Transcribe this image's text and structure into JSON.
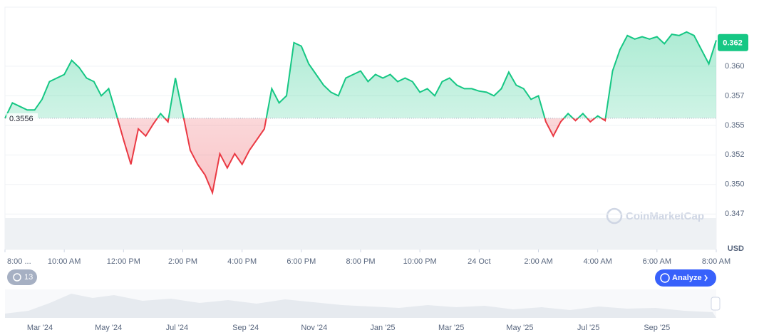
{
  "chart_data": {
    "type": "line",
    "x": [
      0,
      0.25,
      0.5,
      0.75,
      1,
      1.25,
      1.5,
      1.75,
      2,
      2.25,
      2.5,
      2.75,
      3,
      3.25,
      3.5,
      3.75,
      4,
      4.25,
      4.5,
      4.75,
      5,
      5.25,
      5.5,
      5.75,
      6,
      6.25,
      6.5,
      6.75,
      7,
      7.25,
      7.5,
      7.75,
      8,
      8.25,
      8.5,
      8.75,
      9,
      9.25,
      9.5,
      9.75,
      10,
      10.25,
      10.5,
      10.75,
      11,
      11.25,
      11.5,
      11.75,
      12,
      12.25,
      12.5,
      12.75,
      13,
      13.25,
      13.5,
      13.75,
      14,
      14.25,
      14.5,
      14.75,
      15,
      15.25,
      15.5,
      15.75,
      16,
      16.25,
      16.5,
      16.75,
      17,
      17.25,
      17.5,
      17.75,
      18,
      18.25,
      18.5,
      18.75,
      19,
      19.25,
      19.5,
      19.75,
      20,
      20.25,
      20.5,
      20.75,
      21,
      21.25,
      21.5,
      21.75,
      22,
      22.25,
      22.5,
      22.75,
      23,
      23.25,
      23.5,
      23.75,
      24
    ],
    "values": [
      0.3556,
      0.3569,
      0.3566,
      0.3563,
      0.3563,
      0.3572,
      0.3587,
      0.359,
      0.3593,
      0.3605,
      0.3599,
      0.359,
      0.3587,
      0.3575,
      0.3581,
      0.356,
      0.3538,
      0.3517,
      0.3547,
      0.3541,
      0.3551,
      0.356,
      0.3553,
      0.359,
      0.356,
      0.3529,
      0.3517,
      0.3508,
      0.3493,
      0.3526,
      0.3514,
      0.3526,
      0.3517,
      0.3529,
      0.3538,
      0.3547,
      0.3581,
      0.3569,
      0.3575,
      0.362,
      0.3617,
      0.3602,
      0.3593,
      0.3584,
      0.3578,
      0.3575,
      0.359,
      0.3593,
      0.3596,
      0.3587,
      0.3593,
      0.359,
      0.3593,
      0.3587,
      0.359,
      0.3587,
      0.3578,
      0.3581,
      0.3575,
      0.3587,
      0.359,
      0.3584,
      0.3581,
      0.3581,
      0.3579,
      0.3578,
      0.3575,
      0.3581,
      0.3595,
      0.3584,
      0.3581,
      0.3572,
      0.3575,
      0.3553,
      0.3541,
      0.3553,
      0.356,
      0.3554,
      0.356,
      0.3553,
      0.3558,
      0.3554,
      0.3596,
      0.3614,
      0.3626,
      0.3623,
      0.3625,
      0.3623,
      0.3625,
      0.3619,
      0.3627,
      0.3626,
      0.3629,
      0.3626,
      0.3614,
      0.3602,
      0.3622
    ],
    "colors": {
      "up": "#16c784",
      "down": "#ea3943"
    },
    "baseline": 0.3556,
    "current_price": 0.362,
    "xlim": [
      0,
      24
    ],
    "xticks": [
      {
        "value": 0,
        "label": "8:00 ..."
      },
      {
        "value": 2,
        "label": "10:00 AM"
      },
      {
        "value": 4,
        "label": "12:00 PM"
      },
      {
        "value": 6,
        "label": "2:00 PM"
      },
      {
        "value": 8,
        "label": "4:00 PM"
      },
      {
        "value": 10,
        "label": "6:00 PM"
      },
      {
        "value": 12,
        "label": "8:00 PM"
      },
      {
        "value": 14,
        "label": "10:00 PM"
      },
      {
        "value": 16,
        "label": "24 Oct"
      },
      {
        "value": 18,
        "label": "2:00 AM"
      },
      {
        "value": 20,
        "label": "4:00 AM"
      },
      {
        "value": 22,
        "label": "6:00 AM"
      },
      {
        "value": 24,
        "label": "8:00 AM"
      }
    ],
    "ylim": [
      0.3445,
      0.365
    ],
    "yticks": [
      {
        "value": 0.3475,
        "label": "0.347"
      },
      {
        "value": 0.35,
        "label": "0.350"
      },
      {
        "value": 0.3525,
        "label": "0.352"
      },
      {
        "value": 0.355,
        "label": "0.355"
      },
      {
        "value": 0.3575,
        "label": "0.357"
      },
      {
        "value": 0.36,
        "label": "0.360"
      }
    ],
    "grid": true,
    "y_unit": "USD",
    "watermark": "CoinMarketCap"
  },
  "controls": {
    "history_count": "13",
    "analyze": "Analyze"
  },
  "navigator": {
    "labels": [
      "Mar '24",
      "May '24",
      "Jul '24",
      "Sep '24",
      "Nov '24",
      "Jan '25",
      "Mar '25",
      "May '25",
      "Jul '25",
      "Sep '25"
    ]
  }
}
